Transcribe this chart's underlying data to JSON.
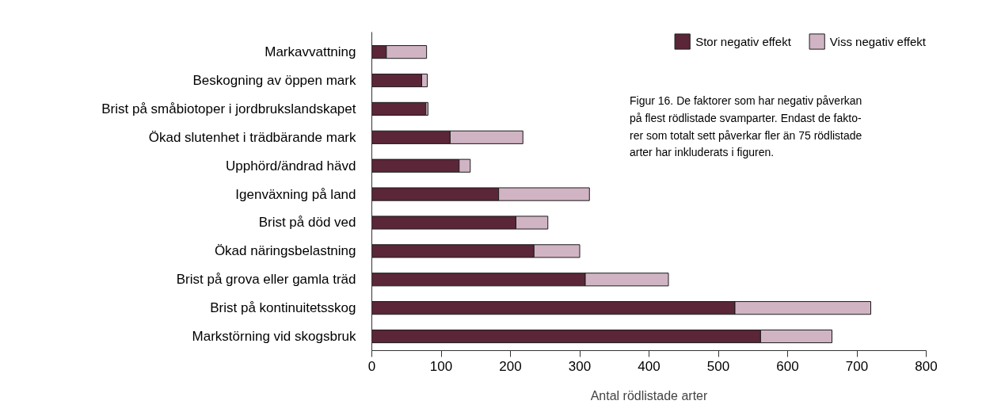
{
  "chart_data": {
    "type": "bar",
    "orientation": "horizontal",
    "stacked": true,
    "categories": [
      "Markavvattning",
      "Beskogning av öppen mark",
      "Brist på småbiotoper i jordbrukslandskapet",
      "Ökad slutenhet i trädbärande mark",
      "Upphörd/ändrad hävd",
      "Igenväxning på land",
      "Brist på död ved",
      "Ökad näringsbelastning",
      "Brist på grova eller gamla träd",
      "Brist på kontinuitetsskog",
      "Markstörning vid skogsbruk"
    ],
    "series": [
      {
        "name": "Stor negativ effekt",
        "color": "#5a2638",
        "values": [
          21,
          72,
          78,
          113,
          126,
          183,
          208,
          234,
          308,
          524,
          561
        ]
      },
      {
        "name": "Viss negativ effekt",
        "color": "#d1b4c4",
        "values": [
          58,
          8,
          3,
          105,
          16,
          131,
          46,
          66,
          120,
          196,
          103
        ]
      }
    ],
    "xlim": [
      0,
      800
    ],
    "xticks": [
      0,
      100,
      200,
      300,
      400,
      500,
      600,
      700,
      800
    ],
    "xlabel": "Antal rödlistade arter",
    "legend": "top right",
    "grid": false,
    "annotations": [
      "Figur 16. De faktorer som har negativ påverkan\npå flest rödlistade svamparter. Endast de fakto-\nrer som totalt sett påverkar fler än 75 rödlistade\narter har inkluderats i figuren."
    ]
  }
}
